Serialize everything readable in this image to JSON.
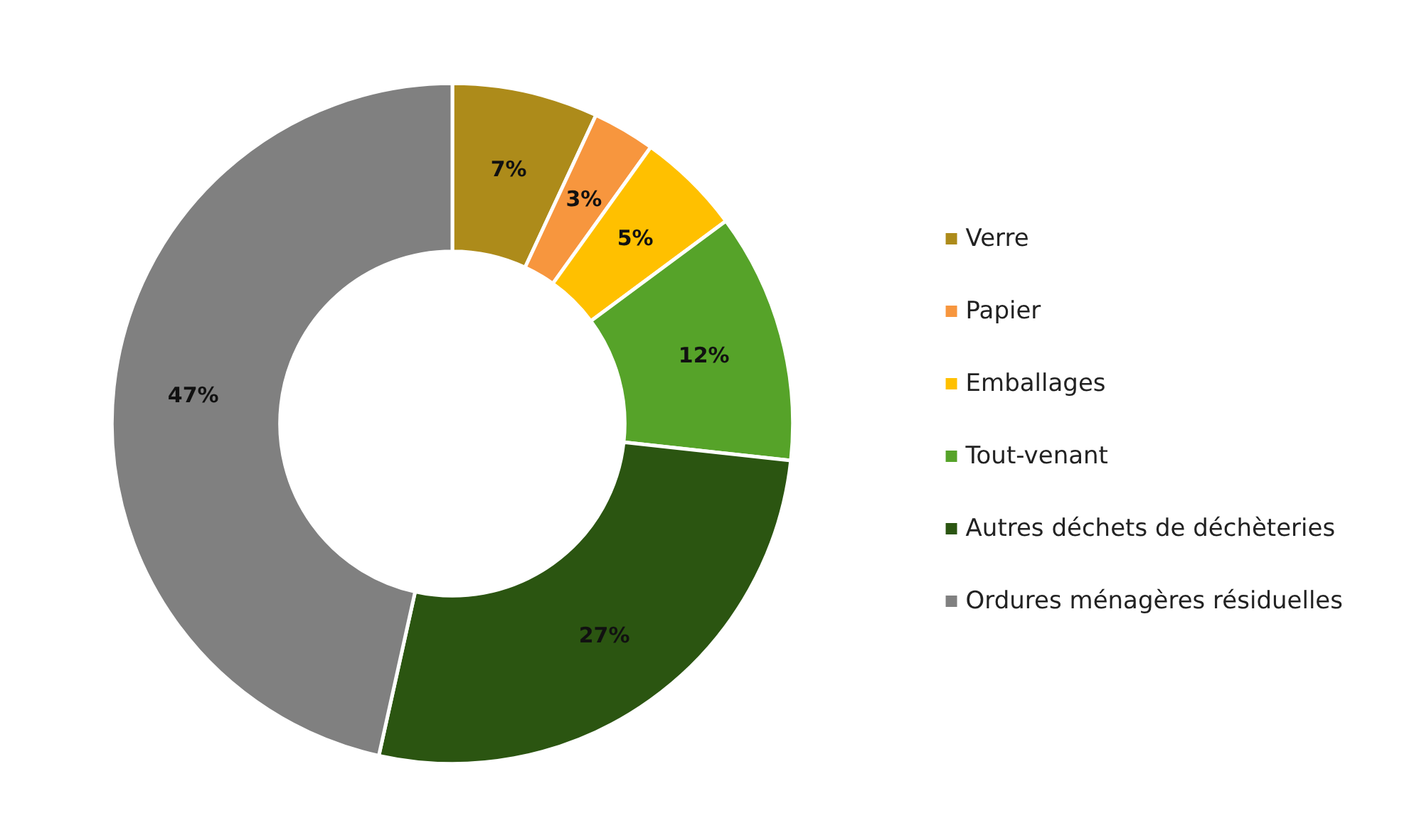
{
  "chart_data": {
    "type": "donut",
    "categories": [
      "Verre",
      "Papier",
      "Emballages",
      "Tout-venant",
      "Autres déchets de déchèteries",
      "Ordures ménagères résiduelles"
    ],
    "values": [
      7,
      3,
      5,
      12,
      27,
      47
    ],
    "colors": [
      "#ad8b1a",
      "#f7963e",
      "#ffc000",
      "#56a329",
      "#2b5511",
      "#808080"
    ],
    "value_labels": [
      "7%",
      "3%",
      "5%",
      "12%",
      "27%",
      "47%"
    ],
    "legend": "right"
  }
}
